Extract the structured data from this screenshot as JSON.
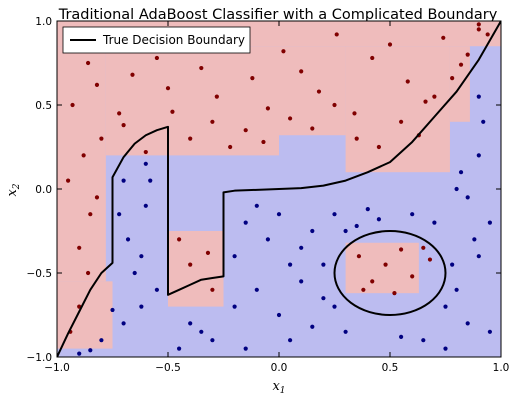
{
  "chart_data": {
    "type": "scatter",
    "title": "Traditional AdaBoost Classifier with a Complicated Boundary",
    "xlabel_main": "x",
    "xlabel_sub": "1",
    "ylabel_main": "x",
    "ylabel_sub": "2",
    "xlim": [
      -1.0,
      1.0
    ],
    "ylim": [
      -1.0,
      1.0
    ],
    "xticks": [
      -1.0,
      -0.5,
      0.0,
      0.5,
      1.0
    ],
    "yticks": [
      -1.0,
      -0.5,
      0.0,
      0.5,
      1.0
    ],
    "xtick_labels": [
      "−1.0",
      "−0.5",
      "0.0",
      "0.5",
      "1.0"
    ],
    "ytick_labels": [
      "−1.0",
      "−0.5",
      "0.0",
      "0.5",
      "1.0"
    ],
    "grid": false,
    "legend": {
      "position": "top-left",
      "entries": [
        {
          "label": "True Decision Boundary",
          "color": "#000000"
        }
      ]
    },
    "colors": {
      "class_a_region": "#efbcbc",
      "class_b_region": "#bcbcf0",
      "class_a_points": "#800000",
      "class_b_points": "#000080"
    },
    "decision_regions_class_a": [
      {
        "x": [
          -1.0,
          1.0
        ],
        "y": [
          0.85,
          1.0
        ]
      },
      {
        "x": [
          -1.0,
          -0.78
        ],
        "y": [
          -0.55,
          0.85
        ]
      },
      {
        "x": [
          -0.78,
          0.0
        ],
        "y": [
          0.2,
          0.85
        ]
      },
      {
        "x": [
          -0.78,
          -0.75
        ],
        "y": [
          -0.8,
          -0.55
        ]
      },
      {
        "x": [
          -1.0,
          -0.75
        ],
        "y": [
          -0.95,
          -0.55
        ]
      },
      {
        "x": [
          0.0,
          0.3
        ],
        "y": [
          0.32,
          0.85
        ]
      },
      {
        "x": [
          0.3,
          0.77
        ],
        "y": [
          0.1,
          0.85
        ]
      },
      {
        "x": [
          0.77,
          0.86
        ],
        "y": [
          0.4,
          0.85
        ]
      },
      {
        "x": [
          -0.5,
          -0.25
        ],
        "y": [
          -0.7,
          -0.25
        ]
      },
      {
        "x": [
          0.3,
          0.63
        ],
        "y": [
          -0.62,
          -0.32
        ]
      }
    ],
    "series": [
      {
        "name": "True Decision Boundary",
        "type": "line",
        "segments": [
          {
            "x": [
              -1.0,
              -0.95,
              -0.9,
              -0.85,
              -0.8,
              -0.75,
              -0.75,
              -0.7,
              -0.65,
              -0.6,
              -0.55,
              -0.5,
              -0.5,
              -0.45,
              -0.4,
              -0.35,
              -0.3,
              -0.25,
              -0.25,
              -0.2,
              -0.1,
              0.0,
              0.1,
              0.2,
              0.3,
              0.4,
              0.5,
              0.6,
              0.7,
              0.8,
              0.9,
              1.0
            ],
            "y": [
              -1.0,
              -0.86,
              -0.73,
              -0.6,
              -0.5,
              -0.44,
              0.07,
              0.19,
              0.27,
              0.32,
              0.35,
              0.37,
              -0.63,
              -0.6,
              -0.57,
              -0.54,
              -0.53,
              -0.52,
              -0.02,
              -0.01,
              -0.005,
              0.0,
              0.005,
              0.02,
              0.05,
              0.1,
              0.16,
              0.28,
              0.43,
              0.58,
              0.77,
              1.0
            ]
          }
        ],
        "ellipse": {
          "center": [
            0.5,
            -0.5
          ],
          "rx": 0.25,
          "ry": 0.25
        }
      },
      {
        "name": "",
        "type": "points",
        "color": "#800000",
        "x": [
          -0.95,
          -0.9,
          -0.86,
          -0.82,
          -0.93,
          -0.72,
          -0.66,
          -0.6,
          -0.55,
          -0.5,
          -0.42,
          -0.35,
          -0.28,
          -0.2,
          -0.12,
          -0.05,
          0.02,
          0.1,
          0.18,
          0.26,
          0.34,
          0.42,
          0.5,
          0.58,
          0.66,
          0.74,
          0.82,
          0.9,
          -0.8,
          -0.7,
          -0.6,
          -0.48,
          -0.4,
          -0.3,
          -0.22,
          -0.15,
          -0.07,
          0.05,
          0.15,
          0.25,
          0.35,
          0.45,
          0.55,
          0.63,
          0.7,
          0.78,
          0.85,
          -0.88,
          -0.95,
          -0.85,
          -0.9,
          -0.82,
          -0.45,
          -0.4,
          -0.32,
          -0.3,
          0.36,
          0.42,
          0.48,
          0.55,
          0.6,
          0.68,
          0.38,
          0.52,
          0.65,
          -0.9,
          -0.94,
          -0.86,
          0.94,
          0.9
        ],
        "y": [
          0.92,
          0.85,
          0.75,
          0.62,
          0.5,
          0.45,
          0.68,
          0.9,
          0.78,
          0.6,
          0.95,
          0.72,
          0.55,
          0.88,
          0.66,
          0.48,
          0.82,
          0.7,
          0.58,
          0.92,
          0.45,
          0.78,
          0.86,
          0.64,
          0.52,
          0.9,
          0.74,
          0.95,
          0.3,
          0.38,
          0.22,
          0.46,
          0.3,
          0.4,
          0.25,
          0.35,
          0.28,
          0.42,
          0.36,
          0.5,
          0.3,
          0.25,
          0.4,
          0.32,
          0.55,
          0.66,
          0.8,
          0.2,
          0.05,
          -0.15,
          -0.35,
          -0.05,
          -0.3,
          -0.45,
          -0.38,
          -0.6,
          -0.4,
          -0.55,
          -0.45,
          -0.36,
          -0.52,
          -0.42,
          -0.6,
          -0.62,
          -0.35,
          -0.7,
          -0.85,
          -0.5,
          0.92,
          0.98
        ]
      },
      {
        "name": "",
        "type": "points",
        "color": "#000080",
        "x": [
          -0.9,
          -0.8,
          -0.7,
          -0.62,
          -0.55,
          -0.68,
          -0.6,
          -0.45,
          -0.35,
          -0.15,
          -0.05,
          0.05,
          0.15,
          0.25,
          0.35,
          0.45,
          0.55,
          0.65,
          0.75,
          0.85,
          0.95,
          -0.85,
          -0.75,
          -0.65,
          -0.4,
          -0.3,
          -0.1,
          0.0,
          0.1,
          0.2,
          0.3,
          0.8,
          0.9,
          0.95,
          -0.2,
          -0.1,
          0.0,
          0.1,
          0.2,
          0.3,
          0.4,
          0.6,
          0.7,
          0.8,
          0.9,
          -0.7,
          -0.6,
          -0.2,
          -0.15,
          0.05,
          0.15,
          0.25,
          0.78,
          0.88,
          0.92,
          0.82,
          0.9,
          -0.72,
          -0.58,
          -0.62,
          0.75,
          0.85
        ],
        "y": [
          -0.98,
          -0.9,
          -0.8,
          -0.7,
          -0.6,
          -0.3,
          -0.1,
          -0.95,
          -0.85,
          -0.2,
          -0.3,
          -0.45,
          -0.25,
          -0.15,
          -0.22,
          -0.18,
          -0.88,
          -0.9,
          -0.95,
          -0.8,
          -0.85,
          -0.96,
          -0.72,
          -0.5,
          -0.8,
          -0.9,
          -0.6,
          -0.75,
          -0.55,
          -0.65,
          -0.85,
          -0.6,
          -0.4,
          -0.2,
          -0.4,
          -0.1,
          -0.15,
          -0.35,
          -0.45,
          -0.25,
          -0.12,
          -0.15,
          -0.2,
          0.0,
          0.2,
          0.05,
          0.15,
          -0.7,
          -0.95,
          -0.9,
          -0.82,
          -0.7,
          -0.45,
          -0.3,
          0.4,
          0.1,
          0.55,
          -0.15,
          0.05,
          -0.4,
          -0.7,
          -0.05
        ]
      }
    ]
  }
}
